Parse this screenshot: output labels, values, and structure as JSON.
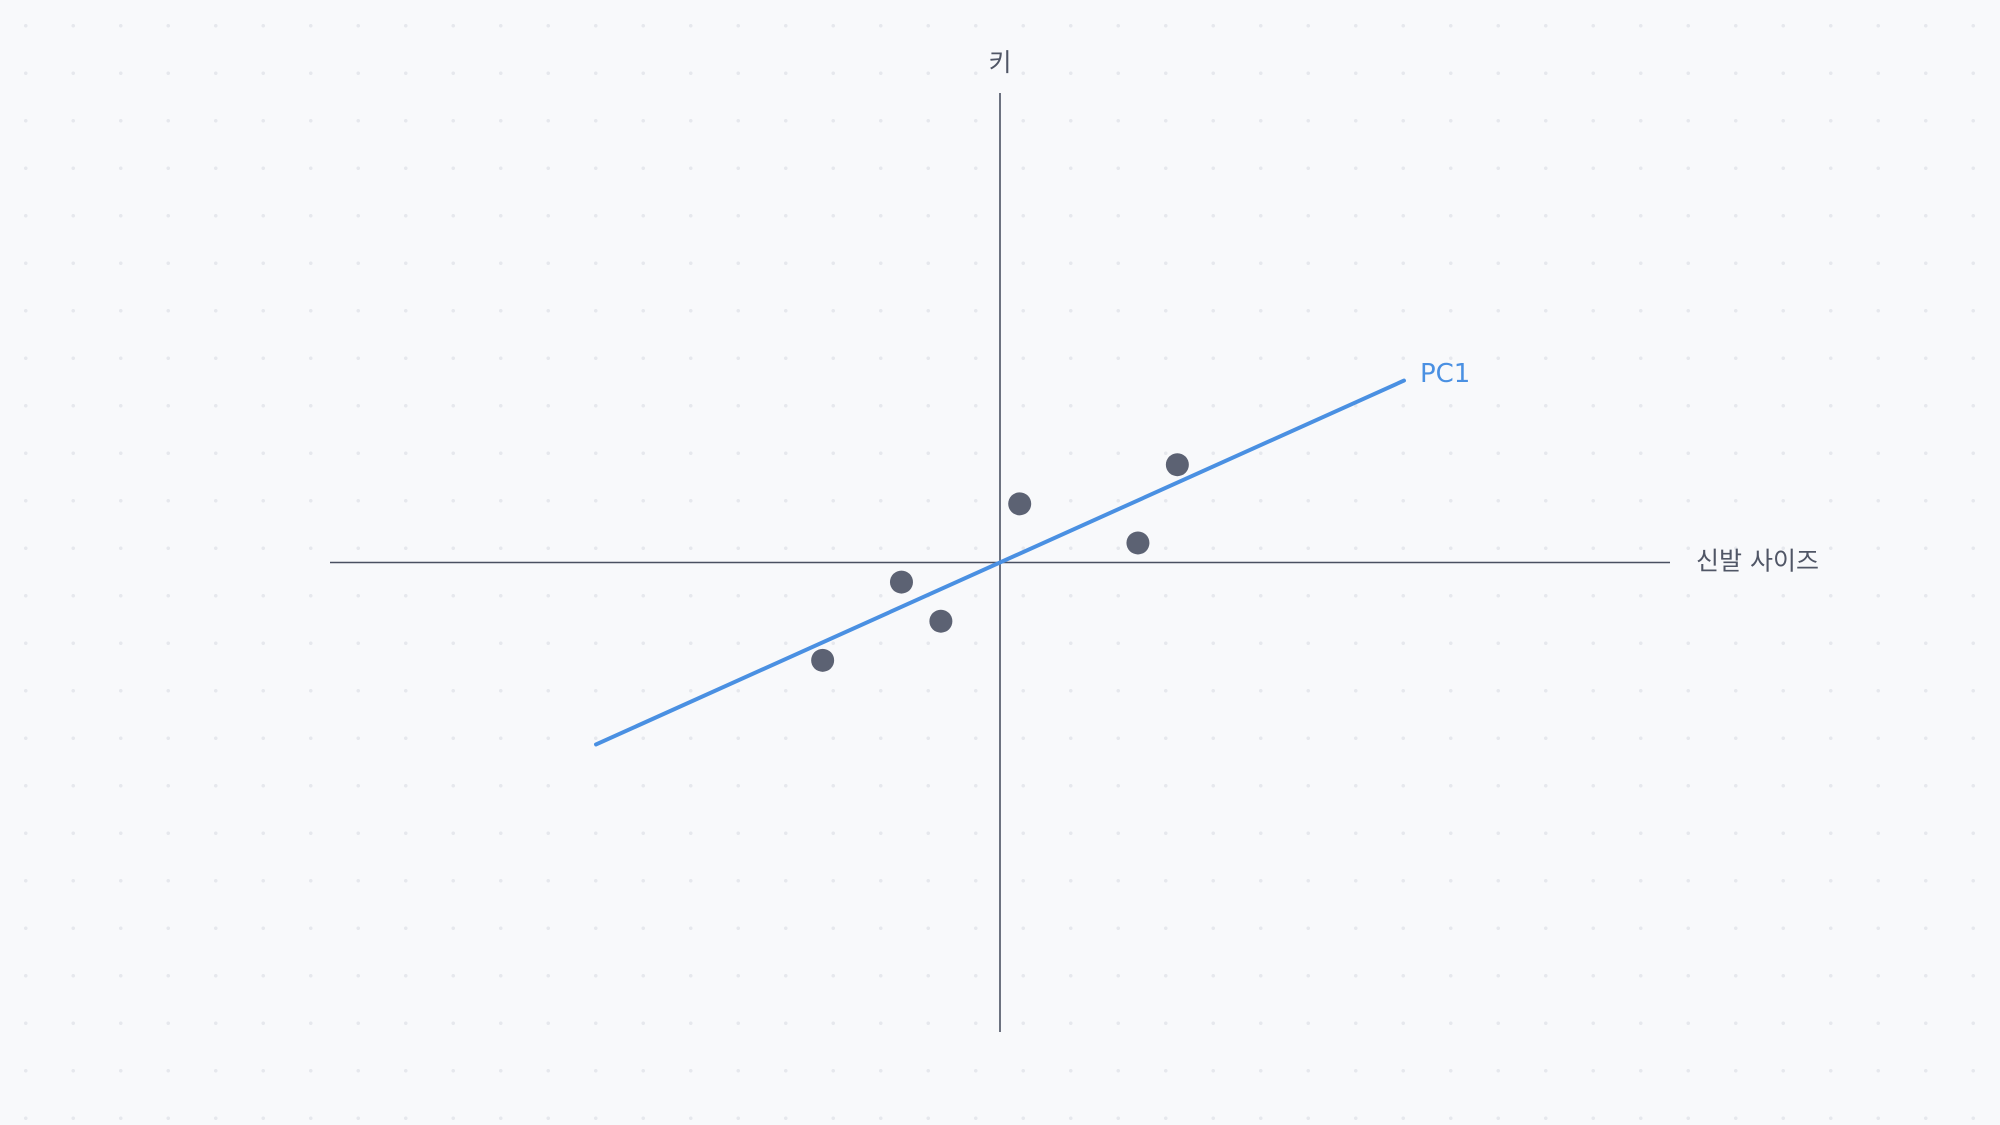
{
  "chart_data": {
    "type": "scatter",
    "title": "",
    "xlabel": "신발 사이즈",
    "ylabel": "키",
    "xlim": [
      -6.8,
      6.8
    ],
    "ylim": [
      -4.8,
      4.8
    ],
    "grid": false,
    "point_color": "#5c6273",
    "axis_color": "#4a5061",
    "points": [
      {
        "x": -1.8,
        "y": -1.0
      },
      {
        "x": -1.0,
        "y": -0.2
      },
      {
        "x": -0.6,
        "y": -0.6
      },
      {
        "x": 0.2,
        "y": 0.6
      },
      {
        "x": 1.4,
        "y": 0.2
      },
      {
        "x": 1.8,
        "y": 1.0
      }
    ],
    "pc_line": {
      "label": "PC1",
      "color": "#4a90e2",
      "x": [
        -4.1,
        4.1
      ],
      "y": [
        -1.86,
        1.86
      ]
    }
  }
}
